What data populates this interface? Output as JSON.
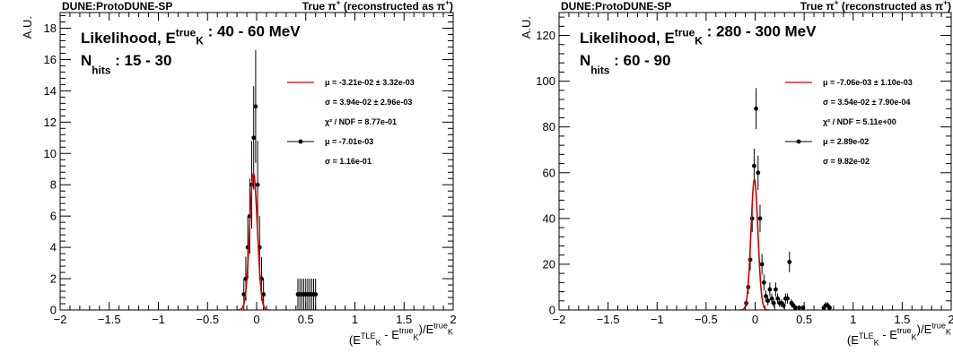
{
  "chart_data": [
    {
      "type": "scatter",
      "header": {
        "left": "DUNE:ProtoDUNE-SP",
        "right_prefix": "True",
        "right_particle": "π",
        "right_mid": " (reconstructed as ",
        "right_particle2": "π",
        "right_close": ")"
      },
      "label": {
        "line1": "Likelihood, E",
        "sup": "true",
        "sub": "K",
        "range": " : 40 - 60 MeV",
        "nhits": "N",
        "nhits_sub": "hits",
        "nhits_range": " : 15 - 30"
      },
      "ylabel": "A.U.",
      "xlabel": {
        "a": "(E",
        "a_sup": "TLE",
        "a_sub": "K",
        "b": " - E",
        "b_sup": "true",
        "b_sub": "K",
        "c": ")/E",
        "c_sup": "true",
        "c_sub": "K"
      },
      "xlim": [
        -2,
        2
      ],
      "ylim": [
        0,
        19
      ],
      "xticks": [
        -2,
        -1.5,
        -1,
        -0.5,
        0,
        0.5,
        1,
        1.5,
        2
      ],
      "xtick_labels": [
        "−2",
        "−1.5",
        "−1",
        "−0.5",
        "0",
        "0.5",
        "1",
        "1.5",
        "2"
      ],
      "yticks": [
        0,
        2,
        4,
        6,
        8,
        10,
        12,
        14,
        16,
        18
      ],
      "ytick_labels": [
        "0",
        "2",
        "4",
        "6",
        "8",
        "10",
        "12",
        "14",
        "16",
        "18"
      ],
      "legend": {
        "fit_mu": "μ = -3.21e-02   ± 3.32e-03",
        "fit_sigma": "σ = 3.94e-02   ± 2.96e-03",
        "fit_chi2": "χ² / NDF = 8.77e-01",
        "data_mu": "μ = -7.01e-03",
        "data_sigma": "σ = 1.16e-01"
      },
      "fit": {
        "mu": -0.0321,
        "sigma": 0.0394,
        "amp": 8.7
      },
      "points": [
        {
          "x": -0.13,
          "y": 1.0,
          "err": 1.0
        },
        {
          "x": -0.11,
          "y": 2.0,
          "err": 1.4
        },
        {
          "x": -0.09,
          "y": 4.0,
          "err": 2.0
        },
        {
          "x": -0.07,
          "y": 6.0,
          "err": 2.4
        },
        {
          "x": -0.05,
          "y": 8.0,
          "err": 2.8
        },
        {
          "x": -0.03,
          "y": 11.0,
          "err": 3.3
        },
        {
          "x": -0.01,
          "y": 13.0,
          "err": 3.6
        },
        {
          "x": 0.01,
          "y": 8.0,
          "err": 2.8
        },
        {
          "x": 0.03,
          "y": 4.0,
          "err": 2.0
        },
        {
          "x": 0.05,
          "y": 2.0,
          "err": 1.4
        },
        {
          "x": 0.07,
          "y": 1.0,
          "err": 1.0
        },
        {
          "x": 0.42,
          "y": 1.0,
          "err": 1.0
        },
        {
          "x": 0.44,
          "y": 1.0,
          "err": 1.0
        },
        {
          "x": 0.46,
          "y": 1.0,
          "err": 1.0
        },
        {
          "x": 0.48,
          "y": 1.0,
          "err": 1.0
        },
        {
          "x": 0.5,
          "y": 1.0,
          "err": 1.0
        },
        {
          "x": 0.52,
          "y": 1.0,
          "err": 1.0
        },
        {
          "x": 0.54,
          "y": 1.0,
          "err": 1.0
        },
        {
          "x": 0.56,
          "y": 1.0,
          "err": 1.0
        },
        {
          "x": 0.58,
          "y": 1.0,
          "err": 1.0
        },
        {
          "x": 0.6,
          "y": 1.0,
          "err": 1.0
        }
      ]
    },
    {
      "type": "scatter",
      "header": {
        "left": "DUNE:ProtoDUNE-SP",
        "right_prefix": "True",
        "right_particle": "π",
        "right_mid": " (reconstructed as ",
        "right_particle2": "π",
        "right_close": ")"
      },
      "label": {
        "line1": "Likelihood, E",
        "sup": "true",
        "sub": "K",
        "range": " : 280 - 300 MeV",
        "nhits": "N",
        "nhits_sub": "hits",
        "nhits_range": " : 60 - 90"
      },
      "ylabel": "A.U.",
      "xlabel": {
        "a": "(E",
        "a_sup": "TLE",
        "a_sub": "K",
        "b": " - E",
        "b_sup": "true",
        "b_sub": "K",
        "c": ")/E",
        "c_sup": "true",
        "c_sub": "K"
      },
      "xlim": [
        -2,
        2
      ],
      "ylim": [
        0,
        130
      ],
      "xticks": [
        -2,
        -1.5,
        -1,
        -0.5,
        0,
        0.5,
        1,
        1.5,
        2
      ],
      "xtick_labels": [
        "−2",
        "−1.5",
        "−1",
        "−0.5",
        "0",
        "0.5",
        "1",
        "1.5",
        "2"
      ],
      "yticks": [
        0,
        20,
        40,
        60,
        80,
        100,
        120
      ],
      "ytick_labels": [
        "0",
        "20",
        "40",
        "60",
        "80",
        "100",
        "120"
      ],
      "legend": {
        "fit_mu": "μ = -7.06e-03   ± 1.10e-03",
        "fit_sigma": "σ = 3.54e-02   ± 7.90e-04",
        "fit_chi2": "χ² / NDF = 5.11e+00",
        "data_mu": "μ = 2.89e-02",
        "data_sigma": "σ = 9.82e-02"
      },
      "fit": {
        "mu": -0.00706,
        "sigma": 0.0354,
        "amp": 57
      },
      "points": [
        {
          "x": -0.09,
          "y": 3,
          "err": 1.5
        },
        {
          "x": -0.07,
          "y": 10,
          "err": 3
        },
        {
          "x": -0.05,
          "y": 22,
          "err": 4.5
        },
        {
          "x": -0.03,
          "y": 40,
          "err": 6
        },
        {
          "x": -0.01,
          "y": 63,
          "err": 7.5
        },
        {
          "x": 0.01,
          "y": 88,
          "err": 9
        },
        {
          "x": 0.03,
          "y": 60,
          "err": 7.5
        },
        {
          "x": 0.05,
          "y": 40,
          "err": 6
        },
        {
          "x": 0.07,
          "y": 20,
          "err": 4.5
        },
        {
          "x": 0.09,
          "y": 12,
          "err": 3.5
        },
        {
          "x": 0.11,
          "y": 6,
          "err": 2.5
        },
        {
          "x": 0.13,
          "y": 4,
          "err": 2
        },
        {
          "x": 0.15,
          "y": 9,
          "err": 3
        },
        {
          "x": 0.17,
          "y": 5,
          "err": 2.2
        },
        {
          "x": 0.19,
          "y": 3,
          "err": 1.7
        },
        {
          "x": 0.21,
          "y": 9,
          "err": 3
        },
        {
          "x": 0.23,
          "y": 5,
          "err": 2.2
        },
        {
          "x": 0.25,
          "y": 3,
          "err": 1.7
        },
        {
          "x": 0.27,
          "y": 3,
          "err": 1.7
        },
        {
          "x": 0.29,
          "y": 2,
          "err": 1.4
        },
        {
          "x": 0.31,
          "y": 5,
          "err": 2.2
        },
        {
          "x": 0.33,
          "y": 5,
          "err": 2.2
        },
        {
          "x": 0.35,
          "y": 21,
          "err": 4.5
        },
        {
          "x": 0.37,
          "y": 3,
          "err": 1.7
        },
        {
          "x": 0.39,
          "y": 2,
          "err": 1.4
        },
        {
          "x": 0.41,
          "y": 1,
          "err": 1.0
        },
        {
          "x": 0.45,
          "y": 1,
          "err": 1.0
        },
        {
          "x": 0.49,
          "y": 1,
          "err": 1.0
        },
        {
          "x": 0.7,
          "y": 1,
          "err": 1.0
        },
        {
          "x": 0.72,
          "y": 2,
          "err": 1.4
        },
        {
          "x": 0.74,
          "y": 2,
          "err": 1.4
        },
        {
          "x": 0.76,
          "y": 1,
          "err": 1.0
        }
      ]
    }
  ]
}
